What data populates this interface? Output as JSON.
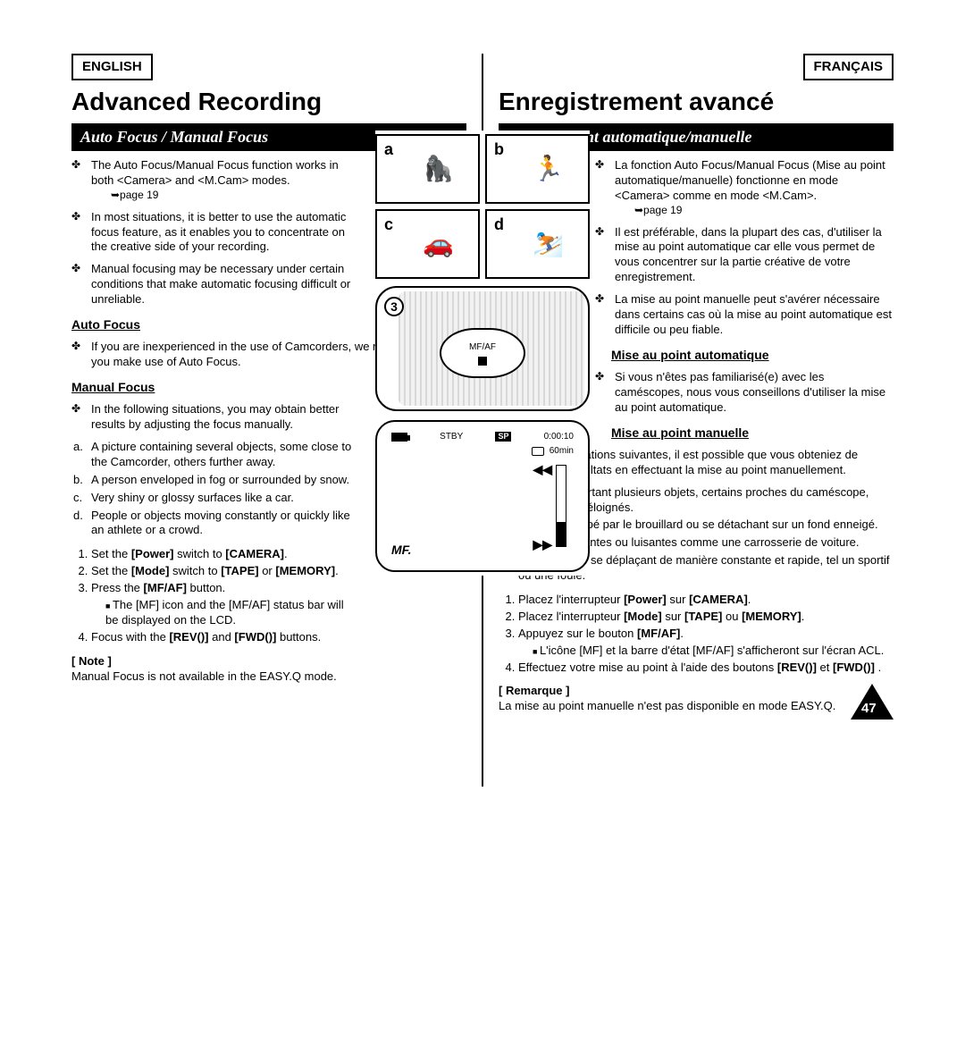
{
  "left": {
    "lang": "ENGLISH",
    "title": "Advanced Recording",
    "bar": "Auto Focus / Manual Focus",
    "intro": [
      "The Auto Focus/Manual Focus function works in both <Camera> and <M.Cam> modes.",
      "In most situations, it is better to use the automatic focus feature, as it enables you to concentrate on the creative side of your recording.",
      "Manual focusing may be necessary under certain conditions that make automatic focusing difficult or unreliable."
    ],
    "pageRef": "➥page 19",
    "autoH": "Auto Focus",
    "autoBullet": "If you are inexperienced in the use of Camcorders, we recommend that you make use of Auto Focus.",
    "manualH": "Manual Focus",
    "manualBullet": "In the following situations, you may obtain better results by adjusting the focus manually.",
    "letters": {
      "a": "A picture containing several objects, some close to the Camcorder, others further away.",
      "b": "A person enveloped in fog or surrounded by snow.",
      "c": "Very shiny or glossy surfaces like a car.",
      "d": "People or objects moving constantly or quickly like an athlete or a crowd."
    },
    "steps": {
      "s1": "Set the Power switch to [CAMERA].",
      "s1b": "Power",
      "s1c": "[CAMERA]",
      "s2a": "Set the ",
      "s2b": "[Mode]",
      "s2c": " switch to ",
      "s2d": "[TAPE]",
      "s2e": " or ",
      "s2f": "[MEMORY]",
      "s2g": ".",
      "s3a": "Press the ",
      "s3b": "[MF/AF]",
      "s3c": " button.",
      "s3sub": "The [MF] icon and the [MF/AF] status bar will be displayed on the LCD.",
      "s4a": "Focus with the ",
      "s4b": "[REV(",
      "s4c": ")]",
      "s4d": " and ",
      "s4e": "[FWD(",
      "s4f": ")]",
      "s4g": " buttons."
    },
    "noteLabel": "[ Note ]",
    "noteBody": "Manual Focus is not available in the EASY.Q mode."
  },
  "right": {
    "lang": "FRANÇAIS",
    "title": "Enregistrement avancé",
    "bar": "Mise au point automatique/manuelle",
    "intro": [
      "La fonction Auto Focus/Manual Focus (Mise au point automatique/manuelle) fonctionne en mode <Camera> comme en mode <M.Cam>.",
      "Il est préférable, dans la plupart des cas, d'utiliser la mise au point automatique car elle vous permet de vous concentrer sur la partie créative de votre enregistrement.",
      "La mise au point manuelle peut s'avérer nécessaire dans certains cas où la mise au point automatique est difficile ou peu fiable."
    ],
    "pageRef": "➥page 19",
    "autoH": "Mise au point automatique",
    "autoBullet": "Si vous n'êtes pas familiarisé(e) avec les caméscopes, nous vous conseillons d'utiliser la mise au point automatique.",
    "manualH": "Mise au point manuelle",
    "manualBullet": "Dans les situations suivantes, il est possible que vous obteniez de meilleurs résultats en effectuant la mise au point manuellement.",
    "letters": {
      "a": "image comportant plusieurs objets, certains proches du caméscope, d'autres plus éloignés.",
      "b": "sujet enveloppé par le brouillard ou se détachant sur un fond enneigé.",
      "c": "surfaces brillantes ou luisantes comme une carrosserie de voiture.",
      "d": "sujet ou objet se déplaçant de manière constante et rapide, tel un sportif ou une foule."
    },
    "steps": {
      "s1": "Placez l'interrupteur Power sur [CAMERA].",
      "s2a": "Placez l'interrupteur ",
      "s2b": "[Mode]",
      "s2c": " sur ",
      "s2d": "[TAPE]",
      "s2e": " ou ",
      "s2f": "[MEMORY]",
      "s2g": ".",
      "s3a": "Appuyez sur le bouton ",
      "s3b": "[MF/AF]",
      "s3c": ".",
      "s3sub": "L'icône [MF] et la barre d'état [MF/AF] s'afficheront sur l'écran ACL.",
      "s4a": "Effectuez votre mise au point à l'aide des boutons ",
      "s4b": "[REV(",
      "s4c": ")]",
      "s4d": " et ",
      "s4e": "[FWD(",
      "s4f": ")]",
      "s4g": " ."
    },
    "noteLabel": "[ Remarque ]",
    "noteBody": "La mise au point manuelle n'est pas disponible en mode EASY.Q."
  },
  "graphics": {
    "labels": {
      "a": "a",
      "b": "b",
      "c": "c",
      "d": "d"
    },
    "emoji": {
      "a": "🦍",
      "b": "🏃",
      "c": "🚗",
      "d": "⛷️"
    },
    "stepNum": "3",
    "mfaf": "MF/AF",
    "lcd": {
      "stby": "STBY",
      "sp": "SP",
      "time": "0:00:10",
      "tape": "60min",
      "mf": "MF.",
      "rr": "◀◀",
      "ff": "▶▶"
    }
  },
  "pageNumber": "47"
}
